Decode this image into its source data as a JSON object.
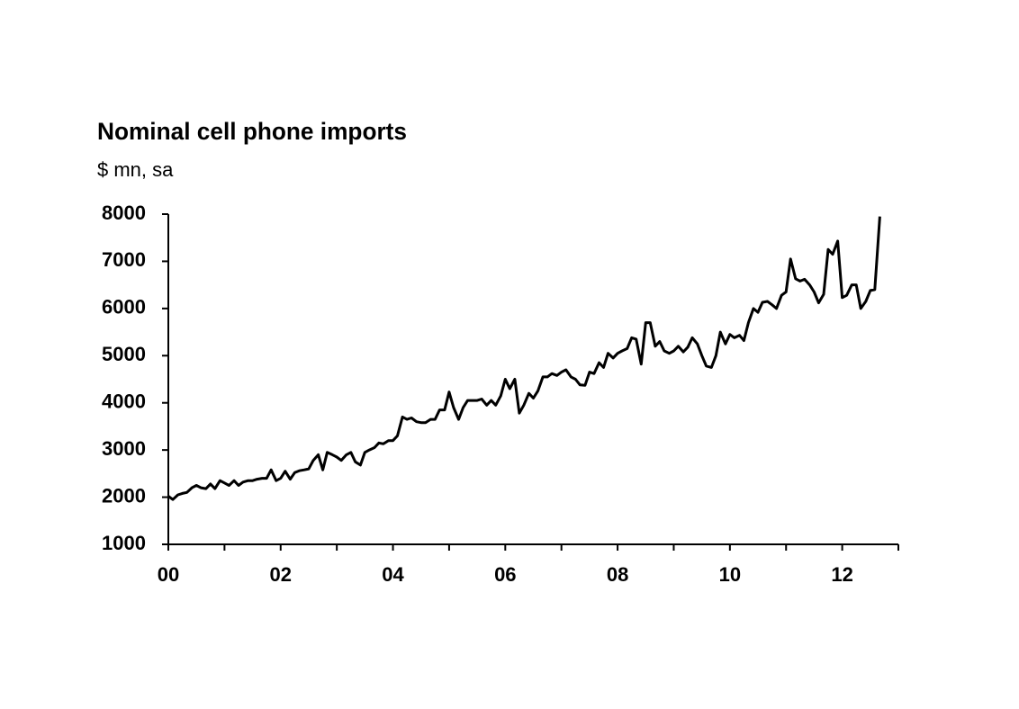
{
  "chart_data": {
    "type": "line",
    "title": "Nominal cell phone imports",
    "subtitle": "$ mn, sa",
    "color": "#000000",
    "x": [
      0,
      0.08,
      0.17,
      0.25,
      0.33,
      0.42,
      0.5,
      0.58,
      0.67,
      0.75,
      0.83,
      0.92,
      1,
      1.08,
      1.17,
      1.25,
      1.33,
      1.42,
      1.5,
      1.58,
      1.67,
      1.75,
      1.83,
      1.92,
      2,
      2.08,
      2.17,
      2.25,
      2.33,
      2.42,
      2.5,
      2.58,
      2.67,
      2.75,
      2.83,
      2.92,
      3,
      3.08,
      3.17,
      3.25,
      3.33,
      3.42,
      3.5,
      3.58,
      3.67,
      3.75,
      3.83,
      3.92,
      4,
      4.08,
      4.17,
      4.25,
      4.33,
      4.42,
      4.5,
      4.58,
      4.67,
      4.75,
      4.83,
      4.92,
      5,
      5.08,
      5.17,
      5.25,
      5.33,
      5.42,
      5.5,
      5.58,
      5.67,
      5.75,
      5.83,
      5.92,
      6,
      6.08,
      6.17,
      6.25,
      6.33,
      6.42,
      6.5,
      6.58,
      6.67,
      6.75,
      6.83,
      6.92,
      7,
      7.08,
      7.17,
      7.25,
      7.33,
      7.42,
      7.5,
      7.58,
      7.67,
      7.75,
      7.83,
      7.92,
      8,
      8.08,
      8.17,
      8.25,
      8.33,
      8.42,
      8.5,
      8.58,
      8.67,
      8.75,
      8.83,
      8.92,
      9,
      9.08,
      9.17,
      9.25,
      9.33,
      9.42,
      9.5,
      9.58,
      9.67,
      9.75,
      9.83,
      9.92,
      10,
      10.08,
      10.17,
      10.25,
      10.33,
      10.42,
      10.5,
      10.58,
      10.67,
      10.75,
      10.83,
      10.92,
      11,
      11.08,
      11.17,
      11.25,
      11.33,
      11.42,
      11.5,
      11.58,
      11.67,
      11.75,
      11.83,
      11.92,
      12,
      12.08,
      12.17,
      12.25,
      12.33,
      12.42,
      12.5,
      12.58,
      12.67
    ],
    "values": [
      2020,
      1950,
      2050,
      2080,
      2100,
      2200,
      2250,
      2200,
      2180,
      2280,
      2180,
      2350,
      2300,
      2250,
      2350,
      2250,
      2320,
      2350,
      2350,
      2380,
      2400,
      2400,
      2580,
      2350,
      2400,
      2550,
      2380,
      2520,
      2560,
      2580,
      2600,
      2780,
      2900,
      2580,
      2950,
      2900,
      2850,
      2780,
      2900,
      2950,
      2750,
      2680,
      2950,
      3000,
      3050,
      3150,
      3130,
      3200,
      3200,
      3300,
      3700,
      3650,
      3680,
      3600,
      3580,
      3580,
      3650,
      3650,
      3850,
      3850,
      4230,
      3900,
      3650,
      3900,
      4050,
      4050,
      4050,
      4080,
      3950,
      4050,
      3950,
      4150,
      4500,
      4300,
      4500,
      3780,
      3950,
      4200,
      4100,
      4250,
      4550,
      4550,
      4620,
      4580,
      4650,
      4700,
      4550,
      4500,
      4380,
      4370,
      4650,
      4620,
      4850,
      4750,
      5050,
      4950,
      5050,
      5100,
      5150,
      5380,
      5350,
      4820,
      5700,
      5700,
      5200,
      5300,
      5100,
      5050,
      5100,
      5200,
      5080,
      5180,
      5380,
      5250,
      5000,
      4780,
      4750,
      5000,
      5500,
      5250,
      5450,
      5380,
      5430,
      5320,
      5700,
      6000,
      5920,
      6130,
      6150,
      6080,
      6000,
      6280,
      6350,
      7050,
      6630,
      6580,
      6620,
      6500,
      6350,
      6120,
      6300,
      7250,
      7150,
      7430,
      6230,
      6280,
      6500,
      6500,
      6000,
      6150,
      6380,
      6400,
      7950
    ],
    "xlim": [
      0,
      13
    ],
    "xticks": [
      {
        "value": 0,
        "label": "00"
      },
      {
        "value": 2,
        "label": "02"
      },
      {
        "value": 4,
        "label": "04"
      },
      {
        "value": 6,
        "label": "06"
      },
      {
        "value": 8,
        "label": "08"
      },
      {
        "value": 10,
        "label": "10"
      },
      {
        "value": 12,
        "label": "12"
      }
    ],
    "xminor_ticks": [
      0,
      1,
      2,
      3,
      4,
      5,
      6,
      7,
      8,
      9,
      10,
      11,
      12,
      13
    ],
    "ylim": [
      1000,
      8000
    ],
    "yticks": [
      1000,
      2000,
      3000,
      4000,
      5000,
      6000,
      7000,
      8000
    ],
    "grid": false
  }
}
